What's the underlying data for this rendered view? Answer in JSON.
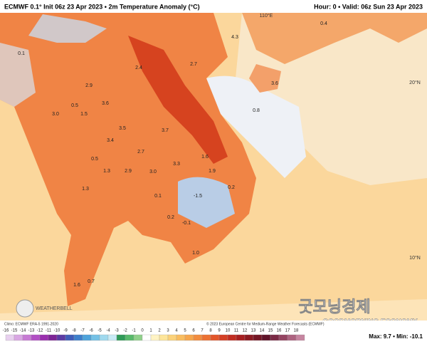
{
  "header": {
    "left": "ECMWF 0.1° Init 06z 23 Apr 2023 • 2m Temperature Anomaly (°C)",
    "right": "Hour: 0 • Valid: 06z Sun 23 Apr 2023"
  },
  "map": {
    "grid_labels": [
      "110°E",
      "20°N",
      "10°N"
    ],
    "anomaly_labels": [
      "4.3",
      "0.4",
      "0.1",
      "2.9",
      "3.6",
      "0.5",
      "3.0",
      "1.5",
      "3.5",
      "3.7",
      "3.4",
      "2.7",
      "0.5",
      "1.3",
      "2.9",
      "3.0",
      "3.3",
      "1.6",
      "1.9",
      "0.1",
      "-1.5",
      "0.2",
      "0.2",
      "-0.1",
      "1.3",
      "3.6",
      "0.8",
      "2.7",
      "2.4",
      "1.6",
      "0.7",
      "1.0"
    ],
    "logo": "WEATHERBELL",
    "watermark": "굿모닝경제",
    "watermark_sub": "GOODMORNING ECONOMY"
  },
  "footer": {
    "climo": "Climo: ECMWF ERA-5 1991-2020",
    "copyright": "© 2023 European Centre for Medium-Range Weather Forecasts (ECMWF)",
    "extremes": "Max: 9.7 • Min: -10.1",
    "colorbar": [
      "-16",
      "-15",
      "-14",
      "-13",
      "-12",
      "-11",
      "-10",
      "-9",
      "-8",
      "-7",
      "-6",
      "-5",
      "-4",
      "-3",
      "-2",
      "-1",
      "0",
      "1",
      "2",
      "3",
      "4",
      "5",
      "6",
      "7",
      "8",
      "9",
      "10",
      "11",
      "12",
      "13",
      "14",
      "15",
      "16",
      "17",
      "18"
    ]
  }
}
